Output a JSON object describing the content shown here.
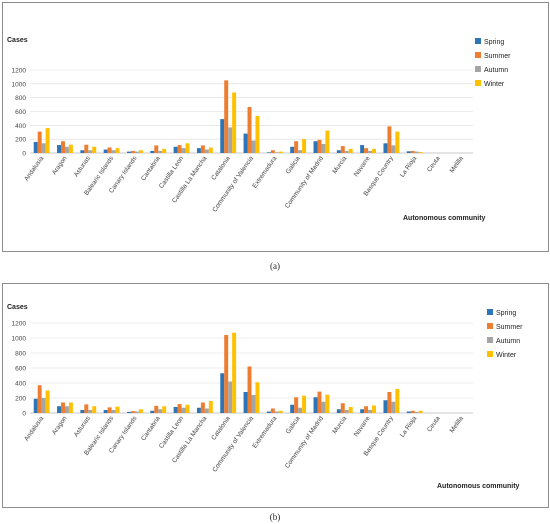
{
  "chart_data": [
    {
      "type": "bar",
      "panel_label": "(a)",
      "ylabel": "Cases",
      "xlabel": "Autonomous community",
      "ylim": [
        0,
        1200
      ],
      "yticks": [
        0,
        200,
        400,
        600,
        800,
        1000,
        1200
      ],
      "categories": [
        "Andalusia",
        "Aragon",
        "Asturias",
        "Balearic Islands",
        "Canary Islands",
        "Cantabria",
        "Castilla Leon",
        "Castilla La Mancha",
        "Catalonia",
        "Community of Valencia",
        "Extremadura",
        "Galicia",
        "Community of Madrid",
        "Murcia",
        "Navarre",
        "Basque Country",
        "La Rioja",
        "Ceuta",
        "Melilla"
      ],
      "legend_position": "right",
      "series": [
        {
          "name": "Spring",
          "color": "#2e75b6",
          "values": [
            160,
            115,
            40,
            50,
            20,
            30,
            90,
            70,
            490,
            280,
            10,
            90,
            170,
            40,
            115,
            140,
            25,
            0,
            0
          ]
        },
        {
          "name": "Summer",
          "color": "#ed7d31",
          "values": [
            310,
            170,
            120,
            80,
            30,
            110,
            115,
            110,
            1050,
            665,
            40,
            170,
            190,
            100,
            70,
            385,
            30,
            0,
            0
          ]
        },
        {
          "name": "Autumn",
          "color": "#a5a5a5",
          "values": [
            140,
            90,
            40,
            40,
            20,
            30,
            70,
            50,
            370,
            180,
            10,
            40,
            130,
            30,
            30,
            110,
            20,
            0,
            0
          ]
        },
        {
          "name": "Winter",
          "color": "#ffc000",
          "values": [
            360,
            120,
            90,
            70,
            40,
            60,
            140,
            80,
            875,
            535,
            20,
            200,
            325,
            60,
            60,
            310,
            15,
            0,
            0
          ]
        }
      ]
    },
    {
      "type": "bar",
      "panel_label": "(b)",
      "ylabel": "Cases",
      "xlabel": "Autonomous community",
      "ylim": [
        0,
        1200
      ],
      "yticks": [
        0,
        200,
        400,
        600,
        800,
        1000,
        1200
      ],
      "categories": [
        "Andalusia",
        "Aragon",
        "Asturias",
        "Balearic Islands",
        "Canary Islands",
        "Cantabria",
        "Castilla Leon",
        "Castilla La Mancha",
        "Catalonia",
        "Community of Valencia",
        "Extremadura",
        "Galicia",
        "Community of Madrid",
        "Murcia",
        "Navarre",
        "Basque Country",
        "La Rioja",
        "Ceuta",
        "Melilla"
      ],
      "legend_position": "right",
      "series": [
        {
          "name": "Spring",
          "color": "#2e75b6",
          "values": [
            190,
            90,
            40,
            40,
            15,
            30,
            80,
            70,
            530,
            280,
            20,
            110,
            210,
            50,
            50,
            170,
            20,
            0,
            0
          ]
        },
        {
          "name": "Summer",
          "color": "#ed7d31",
          "values": [
            370,
            140,
            115,
            75,
            25,
            95,
            120,
            140,
            1040,
            620,
            60,
            210,
            285,
            130,
            90,
            280,
            30,
            0,
            0
          ]
        },
        {
          "name": "Autumn",
          "color": "#a5a5a5",
          "values": [
            200,
            90,
            40,
            40,
            20,
            50,
            70,
            60,
            420,
            240,
            20,
            70,
            150,
            40,
            40,
            150,
            15,
            0,
            0
          ]
        },
        {
          "name": "Winter",
          "color": "#ffc000",
          "values": [
            300,
            140,
            90,
            85,
            50,
            90,
            110,
            160,
            1070,
            410,
            30,
            230,
            245,
            80,
            100,
            320,
            30,
            0,
            0
          ]
        }
      ]
    }
  ]
}
